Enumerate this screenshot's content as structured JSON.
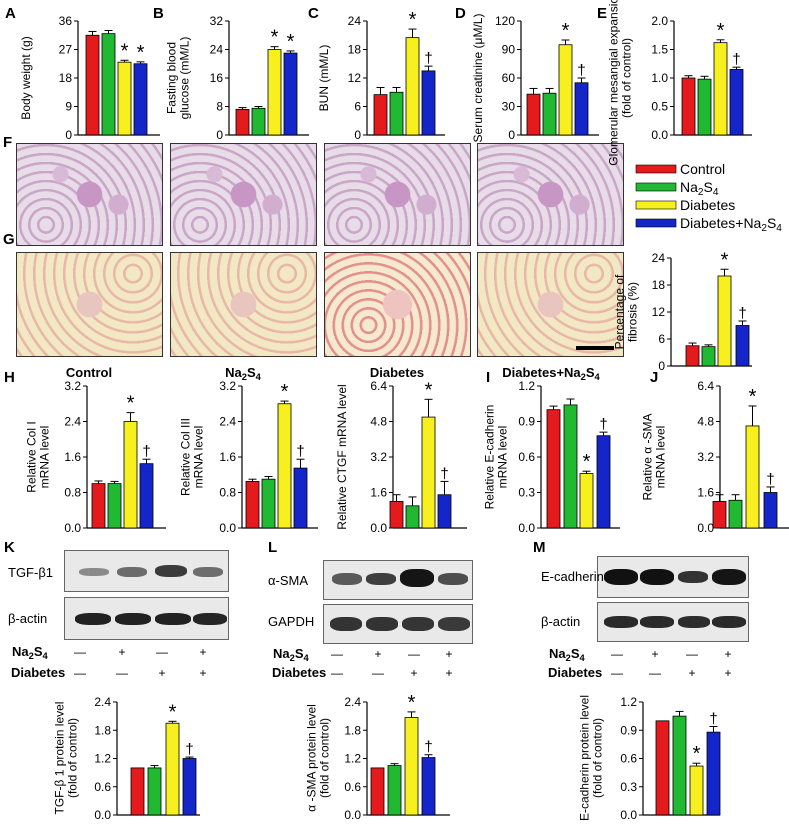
{
  "colors": {
    "control": "#e41a1c",
    "na2s4": "#21b832",
    "diabetes": "#f7ef1e",
    "diab_na2s4": "#1426c9"
  },
  "panel_letters": [
    "A",
    "B",
    "C",
    "D",
    "E",
    "F",
    "G",
    "H",
    "I",
    "J",
    "K",
    "L",
    "M"
  ],
  "legend": {
    "items": [
      "Control",
      "Na2S4",
      "Diabetes",
      "Diabetes+Na2S4"
    ]
  },
  "group_labels": [
    "Control",
    "Na2S4",
    "Diabetes",
    "Diabetes+Na2S4"
  ],
  "blot_row_labels": {
    "na2s4": "Na2S4",
    "diabetes": "Diabetes",
    "signs_na2s4": [
      "—",
      "+",
      "—",
      "+"
    ],
    "signs_diabetes": [
      "—",
      "—",
      "+",
      "+"
    ]
  },
  "blots": {
    "K": {
      "top": "TGF-β1",
      "bottom": "β-actin"
    },
    "L": {
      "top": "α-SMA",
      "bottom": "GAPDH"
    },
    "M": {
      "top": "E-cadherin",
      "bottom": "β-actin"
    }
  },
  "chart_data": [
    {
      "panel": "A",
      "type": "bar",
      "ylabel": "Body weight (g)",
      "ylim": [
        0,
        36
      ],
      "ticks": [
        "0",
        "9",
        "18",
        "27",
        "36"
      ],
      "values": [
        31.5,
        32,
        23,
        22.5
      ],
      "errors": [
        1.2,
        1.0,
        0.6,
        0.6
      ],
      "marks": [
        "",
        "",
        "*",
        "*"
      ]
    },
    {
      "panel": "B",
      "type": "bar",
      "ylabel": "Fasting blood glucose (mM/L)",
      "ylim": [
        0,
        32
      ],
      "ticks": [
        "0",
        "8",
        "16",
        "24",
        "32"
      ],
      "values": [
        7.2,
        7.5,
        24,
        23
      ],
      "errors": [
        0.5,
        0.5,
        0.8,
        0.6
      ],
      "marks": [
        "",
        "",
        "*",
        "*"
      ]
    },
    {
      "panel": "C",
      "type": "bar",
      "ylabel": "BUN (mM/L)",
      "ylim": [
        0,
        24
      ],
      "ticks": [
        "0",
        "6",
        "12",
        "18",
        "24"
      ],
      "values": [
        8.5,
        9,
        20.5,
        13.5
      ],
      "errors": [
        1.5,
        1.0,
        1.8,
        1.0
      ],
      "marks": [
        "",
        "",
        "*",
        "†"
      ]
    },
    {
      "panel": "D",
      "type": "bar",
      "ylabel": "Serum creatinine (μM/L)",
      "ylim": [
        0,
        120
      ],
      "ticks": [
        "0",
        "30",
        "60",
        "90",
        "120"
      ],
      "values": [
        43,
        44,
        95,
        55
      ],
      "errors": [
        6,
        5,
        5,
        5
      ],
      "marks": [
        "",
        "",
        "*",
        "†"
      ]
    },
    {
      "panel": "E",
      "type": "bar",
      "ylabel": "Glomerular mesangial expansion (fold of control)",
      "ylim": [
        0,
        2.0
      ],
      "ticks": [
        "0.0",
        "0.5",
        "1.0",
        "1.5",
        "2.0"
      ],
      "values": [
        1.0,
        0.98,
        1.62,
        1.15
      ],
      "errors": [
        0.04,
        0.05,
        0.05,
        0.04
      ],
      "marks": [
        "",
        "",
        "*",
        "†"
      ]
    },
    {
      "panel": "G",
      "type": "bar",
      "ylabel": "Percentage of fibrosis (%)",
      "ylim": [
        0,
        24
      ],
      "ticks": [
        "0",
        "6",
        "12",
        "18",
        "24"
      ],
      "values": [
        4.5,
        4.3,
        20,
        9
      ],
      "errors": [
        0.6,
        0.4,
        1.5,
        1.0
      ],
      "marks": [
        "",
        "",
        "*",
        "†"
      ]
    },
    {
      "panel": "H1",
      "type": "bar",
      "ylabel": "Relative Col I mRNA level",
      "ylim": [
        0,
        3.2
      ],
      "ticks": [
        "0.0",
        "0.8",
        "1.6",
        "2.4",
        "3.2"
      ],
      "values": [
        1.0,
        1.0,
        2.4,
        1.45
      ],
      "errors": [
        0.06,
        0.05,
        0.2,
        0.1
      ],
      "marks": [
        "",
        "",
        "*",
        "†"
      ]
    },
    {
      "panel": "H2",
      "type": "bar",
      "ylabel": "Relative Col III mRNA level",
      "ylim": [
        0,
        3.2
      ],
      "ticks": [
        "0.0",
        "0.8",
        "1.6",
        "2.4",
        "3.2"
      ],
      "values": [
        1.05,
        1.1,
        2.8,
        1.35
      ],
      "errors": [
        0.05,
        0.06,
        0.06,
        0.2
      ],
      "marks": [
        "",
        "",
        "*",
        "†"
      ]
    },
    {
      "panel": "H3",
      "type": "bar",
      "ylabel": "Relative CTGF mRNA level",
      "ylim": [
        0,
        6.4
      ],
      "ticks": [
        "0.0",
        "1.6",
        "3.2",
        "4.8",
        "6.4"
      ],
      "values": [
        1.2,
        1.0,
        5.0,
        1.5
      ],
      "errors": [
        0.3,
        0.4,
        0.8,
        0.6
      ],
      "marks": [
        "",
        "",
        "*",
        "†"
      ]
    },
    {
      "panel": "I",
      "type": "bar",
      "ylabel": "Relative E-cadherin mRNA level",
      "ylim": [
        0,
        1.2
      ],
      "ticks": [
        "0.0",
        "0.3",
        "0.6",
        "0.9",
        "1.2"
      ],
      "values": [
        1.0,
        1.04,
        0.46,
        0.78
      ],
      "errors": [
        0.03,
        0.05,
        0.02,
        0.03
      ],
      "marks": [
        "",
        "",
        "*",
        "†"
      ]
    },
    {
      "panel": "J",
      "type": "bar",
      "ylabel": "Relative α -SMA mRNA level",
      "ylim": [
        0,
        6.4
      ],
      "ticks": [
        "0.0",
        "1.6",
        "3.2",
        "4.8",
        "6.4"
      ],
      "values": [
        1.2,
        1.25,
        4.6,
        1.6
      ],
      "errors": [
        0.3,
        0.25,
        0.9,
        0.25
      ],
      "marks": [
        "",
        "",
        "*",
        "†"
      ]
    },
    {
      "panel": "K",
      "type": "bar",
      "ylabel": "TGF-β 1 protein level (fold of control)",
      "ylim": [
        0,
        2.4
      ],
      "ticks": [
        "0.0",
        "0.6",
        "1.2",
        "1.8",
        "2.4"
      ],
      "values": [
        1.0,
        1.0,
        1.95,
        1.2
      ],
      "errors": [
        0.0,
        0.05,
        0.04,
        0.03
      ],
      "marks": [
        "",
        "",
        "*",
        "†"
      ]
    },
    {
      "panel": "L",
      "type": "bar",
      "ylabel": "α -SMA protein level (fold of control)",
      "ylim": [
        0,
        2.4
      ],
      "ticks": [
        "0.0",
        "0.6",
        "1.2",
        "1.8",
        "2.4"
      ],
      "values": [
        1.0,
        1.05,
        2.07,
        1.22
      ],
      "errors": [
        0.0,
        0.04,
        0.12,
        0.06
      ],
      "marks": [
        "",
        "",
        "*",
        "†"
      ]
    },
    {
      "panel": "M",
      "type": "bar",
      "ylabel": "E-cadherin protein level (fold of control)",
      "ylim": [
        0,
        1.2
      ],
      "ticks": [
        "0.0",
        "0.3",
        "0.6",
        "0.9",
        "1.2"
      ],
      "values": [
        1.0,
        1.05,
        0.52,
        0.88
      ],
      "errors": [
        0.0,
        0.05,
        0.03,
        0.06
      ],
      "marks": [
        "",
        "",
        "*",
        "†"
      ]
    }
  ]
}
